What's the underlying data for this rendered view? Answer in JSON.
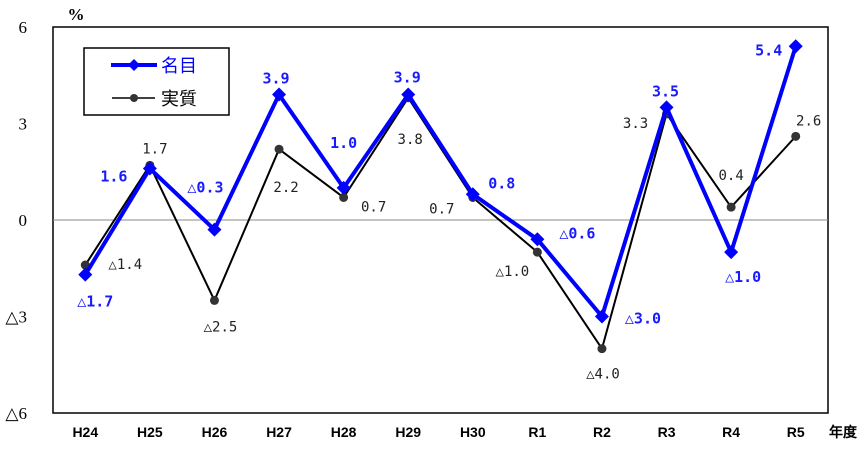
{
  "chart_data": {
    "type": "line",
    "ylabel": "%",
    "xlabel": "年度",
    "categories": [
      "H24",
      "H25",
      "H26",
      "H27",
      "H28",
      "H29",
      "H30",
      "R1",
      "R2",
      "R3",
      "R4",
      "R5"
    ],
    "ylim": [
      -6,
      6
    ],
    "yticks": [
      6,
      3,
      0,
      -3,
      -6
    ],
    "ytick_labels": [
      "6",
      "3",
      "0",
      "△3",
      "△6"
    ],
    "grid": false,
    "legend_position": "top-left",
    "series": [
      {
        "name": "名目",
        "color": "#0000ff",
        "marker": "diamond",
        "values": [
          -1.7,
          1.6,
          -0.3,
          3.9,
          1.0,
          3.9,
          0.8,
          -0.6,
          -3.0,
          3.5,
          -1.0,
          5.4
        ],
        "labels": [
          "△1.7",
          "1.6",
          "△0.3",
          "3.9",
          "1.0",
          "3.9",
          "0.8",
          "△0.6",
          "△3.0",
          "3.5",
          "△1.0",
          "5.4"
        ]
      },
      {
        "name": "実質",
        "color": "#000000",
        "marker": "circle",
        "values": [
          -1.4,
          1.7,
          -2.5,
          2.2,
          0.7,
          3.8,
          0.7,
          -1.0,
          -4.0,
          3.3,
          0.4,
          2.6
        ],
        "labels": [
          "△1.4",
          "1.7",
          "△2.5",
          "2.2",
          "0.7",
          "3.8",
          "0.7",
          "△1.0",
          "△4.0",
          "3.3",
          "0.4",
          "2.6"
        ]
      }
    ]
  }
}
